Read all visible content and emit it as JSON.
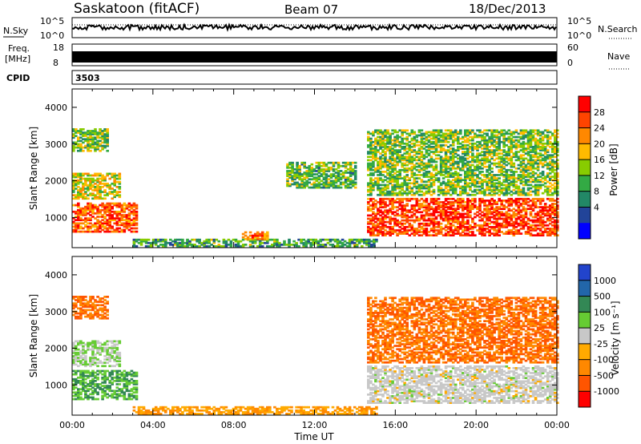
{
  "header": {
    "station": "Saskatoon (fitACF)",
    "beam": "Beam 07",
    "date": "18/Dec/2013"
  },
  "status_panels": {
    "nsky_label": "N.Sky",
    "nsearch_label": "N.Search",
    "nave_label": "Nave",
    "freq_label_1": "Freq.",
    "freq_label_2": "[MHz]",
    "cpid_label": "CPID",
    "cpid_value": "3503",
    "nsky_ticks": [
      "10^5",
      "10^0"
    ],
    "nsearch_ticks": [
      "10^5",
      "10^0"
    ],
    "freq_ticks": [
      "18",
      "8"
    ],
    "nave_ticks": [
      "60",
      "0"
    ]
  },
  "power_colorbar": {
    "label": "Power [dB]",
    "ticks": [
      "28",
      "24",
      "20",
      "16",
      "12",
      "8",
      "4"
    ],
    "colors": [
      "#ff0000",
      "#ff4400",
      "#ff8800",
      "#ffbb00",
      "#88cc00",
      "#33aa44",
      "#228866",
      "#224499",
      "#0000ff"
    ]
  },
  "velocity_colorbar": {
    "label": "Velocity [m s⁻¹]",
    "ticks": [
      "1000",
      "500",
      "100",
      "25",
      "-25",
      "-100",
      "-500",
      "-1000"
    ],
    "colors": [
      "#2244cc",
      "#2266aa",
      "#338855",
      "#66cc33",
      "#c8c8c8",
      "#ffaa00",
      "#ff8800",
      "#ff5500",
      "#ff0000"
    ]
  },
  "chart_data": [
    {
      "type": "heatmap",
      "title": "Power",
      "xlabel": "",
      "ylabel": "Slant Range [km]",
      "xlim": [
        0,
        24
      ],
      "ylim": [
        180,
        4500
      ],
      "yticks": [
        1000,
        2000,
        3000,
        4000
      ],
      "regions": [
        {
          "t0": 0.0,
          "t1": 3.2,
          "r0": 600,
          "r1": 1400,
          "level": 0.85
        },
        {
          "t0": 0.0,
          "t1": 2.4,
          "r0": 1500,
          "r1": 2200,
          "level": 0.55
        },
        {
          "t0": 0.0,
          "t1": 1.8,
          "r0": 2800,
          "r1": 3400,
          "level": 0.45
        },
        {
          "t0": 3.0,
          "t1": 15.0,
          "r0": 200,
          "r1": 400,
          "level": 0.35
        },
        {
          "t0": 8.4,
          "t1": 9.6,
          "r0": 400,
          "r1": 600,
          "level": 0.8
        },
        {
          "t0": 10.6,
          "t1": 14.0,
          "r0": 1800,
          "r1": 2500,
          "level": 0.4
        },
        {
          "t0": 14.6,
          "t1": 24.0,
          "r0": 500,
          "r1": 1500,
          "level": 0.9
        },
        {
          "t0": 14.6,
          "t1": 24.0,
          "r0": 1600,
          "r1": 3400,
          "level": 0.45
        }
      ]
    },
    {
      "type": "heatmap",
      "title": "Velocity",
      "xlabel": "Time UT",
      "ylabel": "Slant Range [km]",
      "xlim": [
        0,
        24
      ],
      "ylim": [
        180,
        4500
      ],
      "yticks": [
        1000,
        2000,
        3000,
        4000
      ],
      "xticks": [
        "00:00",
        "04:00",
        "08:00",
        "12:00",
        "16:00",
        "20:00",
        "00:00"
      ],
      "regions": [
        {
          "t0": 0.0,
          "t1": 3.2,
          "r0": 600,
          "r1": 1400,
          "velocity": 100
        },
        {
          "t0": 0.0,
          "t1": 2.4,
          "r0": 1500,
          "r1": 2200,
          "velocity": 25
        },
        {
          "t0": 0.0,
          "t1": 1.8,
          "r0": 2800,
          "r1": 3400,
          "velocity": -500
        },
        {
          "t0": 3.0,
          "t1": 15.0,
          "r0": 200,
          "r1": 400,
          "velocity": -100
        },
        {
          "t0": 14.6,
          "t1": 24.0,
          "r0": 500,
          "r1": 1500,
          "velocity": 0
        },
        {
          "t0": 14.6,
          "t1": 24.0,
          "r0": 1600,
          "r1": 3400,
          "velocity": -500
        }
      ]
    }
  ]
}
